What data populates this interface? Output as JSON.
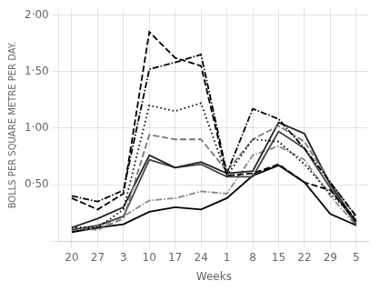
{
  "chart_data": {
    "type": "line",
    "xlabel": "Weeks",
    "ylabel": "BOLLS PER SQUARE METRE PER DAY.",
    "categories": [
      "20",
      "27",
      "3",
      "10",
      "17",
      "24",
      "1",
      "8",
      "15",
      "22",
      "29",
      "5"
    ],
    "ylim": [
      0.0,
      2.05
    ],
    "yticks": [
      {
        "value": 0.0,
        "label": ""
      },
      {
        "value": 0.5,
        "label": "0·50"
      },
      {
        "value": 1.0,
        "label": "1·00"
      },
      {
        "value": 1.5,
        "label": "1·50"
      },
      {
        "value": 2.0,
        "label": "2·00"
      }
    ],
    "grid": true,
    "series": [
      {
        "color": "#000000",
        "line_style": "dashed",
        "values": [
          0.38,
          0.28,
          0.42,
          1.85,
          1.62,
          1.55,
          0.58,
          0.6,
          0.68,
          0.52,
          0.45,
          0.18
        ]
      },
      {
        "color": "#000000",
        "line_style": "dashdot",
        "values": [
          0.4,
          0.35,
          0.45,
          1.52,
          1.58,
          1.65,
          0.6,
          1.17,
          1.08,
          0.82,
          0.52,
          0.22
        ]
      },
      {
        "color": "#000000",
        "line_style": "dotted",
        "values": [
          0.12,
          0.12,
          0.28,
          1.2,
          1.15,
          1.22,
          0.58,
          0.9,
          0.88,
          0.68,
          0.42,
          0.2
        ]
      },
      {
        "color": "#777777",
        "line_style": "dashed",
        "values": [
          0.12,
          0.1,
          0.2,
          0.94,
          0.9,
          0.9,
          0.62,
          0.9,
          1.02,
          0.88,
          0.52,
          0.22
        ]
      },
      {
        "color": "#222222",
        "line_style": "solid",
        "values": [
          0.12,
          0.2,
          0.3,
          0.76,
          0.65,
          0.7,
          0.6,
          0.62,
          1.05,
          0.95,
          0.5,
          0.17
        ]
      },
      {
        "color": "#444444",
        "line_style": "solid",
        "values": [
          0.1,
          0.14,
          0.22,
          0.72,
          0.65,
          0.68,
          0.57,
          0.57,
          0.97,
          0.82,
          0.47,
          0.15
        ]
      },
      {
        "color": "#000000",
        "line_style": "solid",
        "values": [
          0.08,
          0.12,
          0.15,
          0.26,
          0.3,
          0.28,
          0.38,
          0.58,
          0.67,
          0.52,
          0.24,
          0.14
        ]
      },
      {
        "color": "#888888",
        "line_style": "dashdot",
        "values": [
          0.1,
          0.12,
          0.22,
          0.36,
          0.38,
          0.44,
          0.42,
          0.76,
          0.84,
          0.72,
          0.4,
          0.14
        ]
      }
    ]
  }
}
